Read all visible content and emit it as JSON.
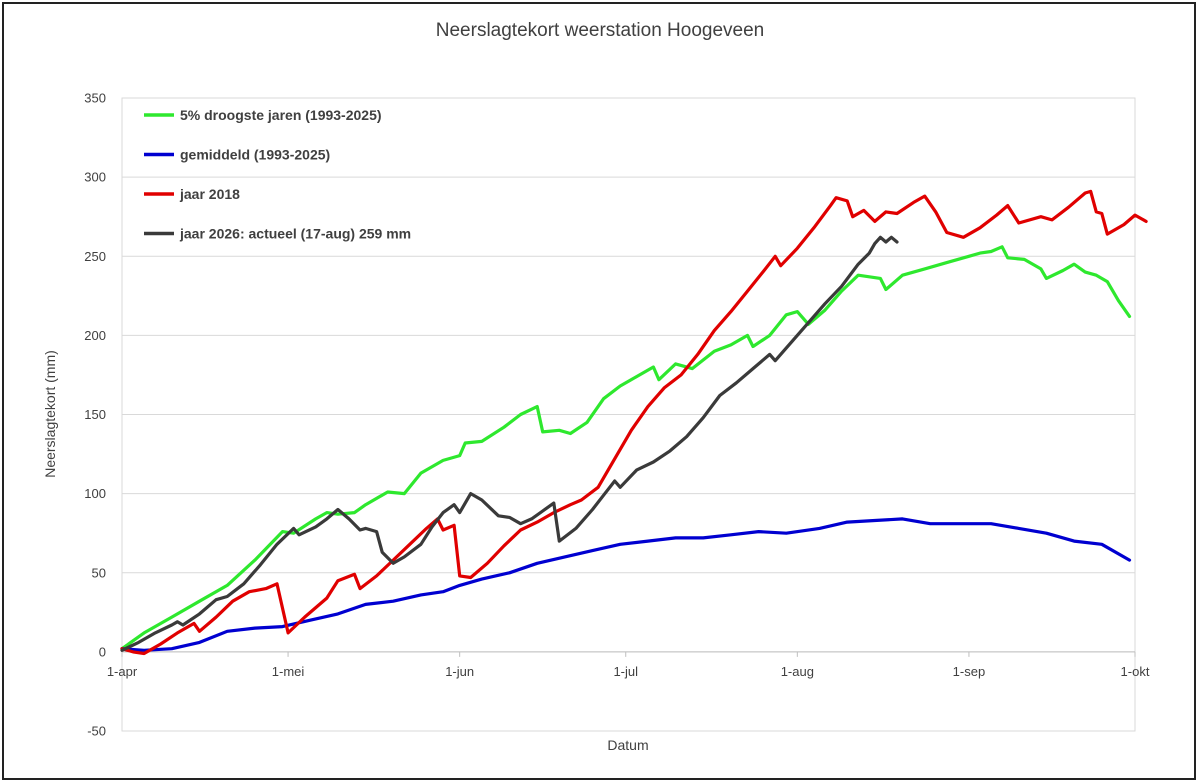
{
  "chart_data": {
    "type": "line",
    "title": "Neerslagtekort weerstation Hoogeveen",
    "xlabel": "Datum",
    "ylabel": "Neerslagtekort (mm)",
    "ylim": [
      -50,
      350
    ],
    "yticks": [
      -50,
      0,
      50,
      100,
      150,
      200,
      250,
      300,
      350
    ],
    "xlim": [
      "2026-04-01",
      "2026-10-01"
    ],
    "xticks": [
      {
        "date": "2026-04-01",
        "label": "1-apr"
      },
      {
        "date": "2026-05-01",
        "label": "1-mei"
      },
      {
        "date": "2026-06-01",
        "label": "1-jun"
      },
      {
        "date": "2026-07-01",
        "label": "1-jul"
      },
      {
        "date": "2026-08-01",
        "label": "1-aug"
      },
      {
        "date": "2026-09-01",
        "label": "1-sep"
      },
      {
        "date": "2026-10-01",
        "label": "1-okt"
      }
    ],
    "grid": {
      "horizontal": true,
      "vertical": false
    },
    "legend_position": "top-left",
    "series": [
      {
        "name": "5% droogste jaren (1993-2025)",
        "color": "#2ee82e",
        "points": [
          [
            "2026-04-01",
            2
          ],
          [
            "2026-04-05",
            12
          ],
          [
            "2026-04-10",
            22
          ],
          [
            "2026-04-15",
            32
          ],
          [
            "2026-04-20",
            42
          ],
          [
            "2026-04-25",
            58
          ],
          [
            "2026-04-30",
            76
          ],
          [
            "2026-05-02",
            75
          ],
          [
            "2026-05-06",
            84
          ],
          [
            "2026-05-08",
            88
          ],
          [
            "2026-05-10",
            87
          ],
          [
            "2026-05-13",
            88
          ],
          [
            "2026-05-15",
            93
          ],
          [
            "2026-05-19",
            101
          ],
          [
            "2026-05-22",
            100
          ],
          [
            "2026-05-25",
            113
          ],
          [
            "2026-05-29",
            121
          ],
          [
            "2026-06-01",
            124
          ],
          [
            "2026-06-02",
            132
          ],
          [
            "2026-06-05",
            133
          ],
          [
            "2026-06-09",
            142
          ],
          [
            "2026-06-12",
            150
          ],
          [
            "2026-06-15",
            155
          ],
          [
            "2026-06-16",
            139
          ],
          [
            "2026-06-19",
            140
          ],
          [
            "2026-06-21",
            138
          ],
          [
            "2026-06-24",
            145
          ],
          [
            "2026-06-27",
            160
          ],
          [
            "2026-06-30",
            168
          ],
          [
            "2026-07-03",
            174
          ],
          [
            "2026-07-06",
            180
          ],
          [
            "2026-07-07",
            172
          ],
          [
            "2026-07-10",
            182
          ],
          [
            "2026-07-13",
            179
          ],
          [
            "2026-07-17",
            190
          ],
          [
            "2026-07-20",
            194
          ],
          [
            "2026-07-23",
            200
          ],
          [
            "2026-07-24",
            193
          ],
          [
            "2026-07-27",
            200
          ],
          [
            "2026-07-30",
            213
          ],
          [
            "2026-08-01",
            215
          ],
          [
            "2026-08-03",
            207
          ],
          [
            "2026-08-06",
            216
          ],
          [
            "2026-08-09",
            228
          ],
          [
            "2026-08-12",
            238
          ],
          [
            "2026-08-16",
            236
          ],
          [
            "2026-08-17",
            229
          ],
          [
            "2026-08-20",
            238
          ],
          [
            "2026-08-24",
            242
          ],
          [
            "2026-08-28",
            246
          ],
          [
            "2026-09-01",
            250
          ],
          [
            "2026-09-03",
            252
          ],
          [
            "2026-09-05",
            253
          ],
          [
            "2026-09-07",
            256
          ],
          [
            "2026-09-08",
            249
          ],
          [
            "2026-09-11",
            248
          ],
          [
            "2026-09-14",
            242
          ],
          [
            "2026-09-15",
            236
          ],
          [
            "2026-09-18",
            241
          ],
          [
            "2026-09-20",
            245
          ],
          [
            "2026-09-22",
            240
          ],
          [
            "2026-09-24",
            238
          ],
          [
            "2026-09-26",
            234
          ],
          [
            "2026-09-28",
            222
          ],
          [
            "2026-09-30",
            212
          ]
        ]
      },
      {
        "name": "gemiddeld (1993-2025)",
        "color": "#0000d0",
        "points": [
          [
            "2026-04-01",
            2
          ],
          [
            "2026-04-05",
            1
          ],
          [
            "2026-04-10",
            2
          ],
          [
            "2026-04-15",
            6
          ],
          [
            "2026-04-20",
            13
          ],
          [
            "2026-04-25",
            15
          ],
          [
            "2026-04-30",
            16
          ],
          [
            "2026-05-05",
            20
          ],
          [
            "2026-05-10",
            24
          ],
          [
            "2026-05-15",
            30
          ],
          [
            "2026-05-20",
            32
          ],
          [
            "2026-05-25",
            36
          ],
          [
            "2026-05-29",
            38
          ],
          [
            "2026-06-01",
            42
          ],
          [
            "2026-06-05",
            46
          ],
          [
            "2026-06-10",
            50
          ],
          [
            "2026-06-15",
            56
          ],
          [
            "2026-06-20",
            60
          ],
          [
            "2026-06-25",
            64
          ],
          [
            "2026-06-30",
            68
          ],
          [
            "2026-07-05",
            70
          ],
          [
            "2026-07-10",
            72
          ],
          [
            "2026-07-15",
            72
          ],
          [
            "2026-07-20",
            74
          ],
          [
            "2026-07-25",
            76
          ],
          [
            "2026-07-30",
            75
          ],
          [
            "2026-08-05",
            78
          ],
          [
            "2026-08-10",
            82
          ],
          [
            "2026-08-15",
            83
          ],
          [
            "2026-08-20",
            84
          ],
          [
            "2026-08-25",
            81
          ],
          [
            "2026-08-30",
            81
          ],
          [
            "2026-09-05",
            81
          ],
          [
            "2026-09-10",
            78
          ],
          [
            "2026-09-15",
            75
          ],
          [
            "2026-09-20",
            70
          ],
          [
            "2026-09-25",
            68
          ],
          [
            "2026-09-30",
            58
          ]
        ]
      },
      {
        "name": "jaar 2018",
        "color": "#e00000",
        "points": [
          [
            "2026-04-01",
            2
          ],
          [
            "2026-04-03",
            0
          ],
          [
            "2026-04-05",
            -1
          ],
          [
            "2026-04-08",
            5
          ],
          [
            "2026-04-11",
            12
          ],
          [
            "2026-04-14",
            18
          ],
          [
            "2026-04-15",
            13
          ],
          [
            "2026-04-18",
            22
          ],
          [
            "2026-04-21",
            32
          ],
          [
            "2026-04-24",
            38
          ],
          [
            "2026-04-27",
            40
          ],
          [
            "2026-04-29",
            43
          ],
          [
            "2026-05-01",
            12
          ],
          [
            "2026-05-04",
            22
          ],
          [
            "2026-05-08",
            34
          ],
          [
            "2026-05-10",
            45
          ],
          [
            "2026-05-13",
            49
          ],
          [
            "2026-05-14",
            40
          ],
          [
            "2026-05-17",
            48
          ],
          [
            "2026-05-20",
            58
          ],
          [
            "2026-05-23",
            68
          ],
          [
            "2026-05-26",
            78
          ],
          [
            "2026-05-28",
            84
          ],
          [
            "2026-05-29",
            77
          ],
          [
            "2026-05-31",
            80
          ],
          [
            "2026-06-01",
            48
          ],
          [
            "2026-06-03",
            47
          ],
          [
            "2026-06-06",
            56
          ],
          [
            "2026-06-09",
            67
          ],
          [
            "2026-06-12",
            77
          ],
          [
            "2026-06-15",
            82
          ],
          [
            "2026-06-18",
            88
          ],
          [
            "2026-06-21",
            93
          ],
          [
            "2026-06-23",
            96
          ],
          [
            "2026-06-26",
            104
          ],
          [
            "2026-06-29",
            122
          ],
          [
            "2026-07-02",
            140
          ],
          [
            "2026-07-05",
            155
          ],
          [
            "2026-07-08",
            167
          ],
          [
            "2026-07-11",
            175
          ],
          [
            "2026-07-14",
            188
          ],
          [
            "2026-07-17",
            203
          ],
          [
            "2026-07-20",
            215
          ],
          [
            "2026-07-23",
            228
          ],
          [
            "2026-07-26",
            241
          ],
          [
            "2026-07-28",
            250
          ],
          [
            "2026-07-29",
            244
          ],
          [
            "2026-08-01",
            255
          ],
          [
            "2026-08-04",
            268
          ],
          [
            "2026-08-07",
            282
          ],
          [
            "2026-08-08",
            287
          ],
          [
            "2026-08-10",
            285
          ],
          [
            "2026-08-11",
            275
          ],
          [
            "2026-08-13",
            279
          ],
          [
            "2026-08-15",
            272
          ],
          [
            "2026-08-17",
            278
          ],
          [
            "2026-08-19",
            277
          ],
          [
            "2026-08-22",
            284
          ],
          [
            "2026-08-24",
            288
          ],
          [
            "2026-08-26",
            278
          ],
          [
            "2026-08-28",
            265
          ],
          [
            "2026-08-31",
            262
          ],
          [
            "2026-09-03",
            268
          ],
          [
            "2026-09-06",
            276
          ],
          [
            "2026-09-08",
            282
          ],
          [
            "2026-09-10",
            271
          ],
          [
            "2026-09-14",
            275
          ],
          [
            "2026-09-16",
            273
          ],
          [
            "2026-09-19",
            281
          ],
          [
            "2026-09-22",
            290
          ],
          [
            "2026-09-23",
            291
          ],
          [
            "2026-09-24",
            278
          ],
          [
            "2026-09-25",
            277
          ],
          [
            "2026-09-26",
            264
          ],
          [
            "2026-09-29",
            270
          ],
          [
            "2026-10-01",
            276
          ],
          [
            "2026-10-03",
            272
          ]
        ]
      },
      {
        "name": "jaar 2026: actueel (17-aug) 259 mm",
        "color": "#3a3a3a",
        "points": [
          [
            "2026-04-01",
            1
          ],
          [
            "2026-04-04",
            6
          ],
          [
            "2026-04-07",
            12
          ],
          [
            "2026-04-10",
            17
          ],
          [
            "2026-04-11",
            19
          ],
          [
            "2026-04-12",
            17
          ],
          [
            "2026-04-15",
            24
          ],
          [
            "2026-04-18",
            33
          ],
          [
            "2026-04-20",
            35
          ],
          [
            "2026-04-23",
            43
          ],
          [
            "2026-04-26",
            55
          ],
          [
            "2026-04-29",
            68
          ],
          [
            "2026-05-02",
            78
          ],
          [
            "2026-05-03",
            74
          ],
          [
            "2026-05-06",
            79
          ],
          [
            "2026-05-08",
            84
          ],
          [
            "2026-05-10",
            90
          ],
          [
            "2026-05-12",
            84
          ],
          [
            "2026-05-14",
            77
          ],
          [
            "2026-05-15",
            78
          ],
          [
            "2026-05-17",
            76
          ],
          [
            "2026-05-18",
            63
          ],
          [
            "2026-05-20",
            56
          ],
          [
            "2026-05-22",
            60
          ],
          [
            "2026-05-25",
            68
          ],
          [
            "2026-05-27",
            79
          ],
          [
            "2026-05-29",
            88
          ],
          [
            "2026-05-31",
            93
          ],
          [
            "2026-06-01",
            88
          ],
          [
            "2026-06-03",
            100
          ],
          [
            "2026-06-05",
            96
          ],
          [
            "2026-06-08",
            86
          ],
          [
            "2026-06-10",
            85
          ],
          [
            "2026-06-12",
            81
          ],
          [
            "2026-06-14",
            84
          ],
          [
            "2026-06-16",
            89
          ],
          [
            "2026-06-18",
            94
          ],
          [
            "2026-06-19",
            70
          ],
          [
            "2026-06-22",
            78
          ],
          [
            "2026-06-25",
            90
          ],
          [
            "2026-06-27",
            99
          ],
          [
            "2026-06-29",
            108
          ],
          [
            "2026-06-30",
            104
          ],
          [
            "2026-07-03",
            115
          ],
          [
            "2026-07-06",
            120
          ],
          [
            "2026-07-09",
            127
          ],
          [
            "2026-07-12",
            136
          ],
          [
            "2026-07-15",
            148
          ],
          [
            "2026-07-18",
            162
          ],
          [
            "2026-07-21",
            170
          ],
          [
            "2026-07-24",
            179
          ],
          [
            "2026-07-27",
            188
          ],
          [
            "2026-07-28",
            184
          ],
          [
            "2026-07-31",
            196
          ],
          [
            "2026-08-03",
            208
          ],
          [
            "2026-08-06",
            220
          ],
          [
            "2026-08-09",
            231
          ],
          [
            "2026-08-12",
            245
          ],
          [
            "2026-08-14",
            252
          ],
          [
            "2026-08-15",
            258
          ],
          [
            "2026-08-16",
            262
          ],
          [
            "2026-08-17",
            259
          ],
          [
            "2026-08-18",
            262
          ],
          [
            "2026-08-19",
            259
          ]
        ]
      }
    ]
  }
}
